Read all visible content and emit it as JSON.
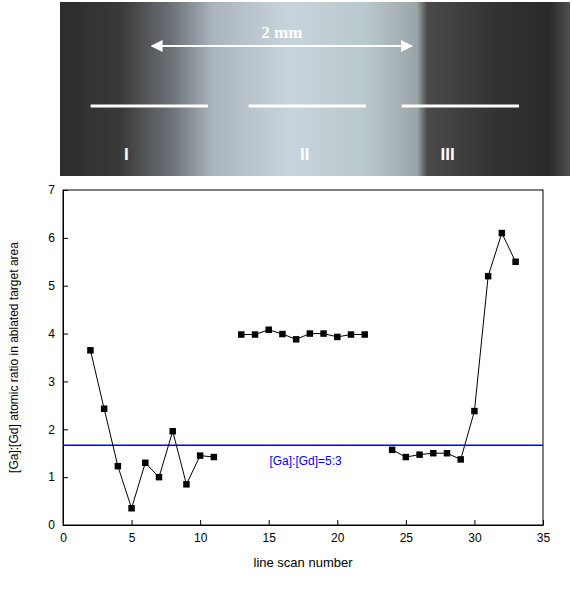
{
  "photo": {
    "scale_label": "2 mm",
    "regions": [
      "I",
      "II",
      "III"
    ]
  },
  "chart_data": {
    "type": "line",
    "x_label": "line scan number",
    "y_label": "[Ga]:[Gd] atomic ratio in ablated target area",
    "x": [
      2,
      3,
      4,
      5,
      6,
      7,
      8,
      9,
      10,
      11,
      12,
      13,
      14,
      15,
      16,
      17,
      18,
      19,
      20,
      21,
      22,
      23,
      24,
      25,
      26,
      27,
      28,
      29,
      30,
      31,
      32,
      33
    ],
    "values": [
      3.65,
      2.43,
      1.23,
      0.35,
      1.3,
      1.0,
      1.96,
      0.85,
      1.45,
      1.42,
      null,
      3.98,
      3.98,
      4.08,
      3.99,
      3.88,
      4.0,
      4.0,
      3.93,
      3.98,
      3.98,
      null,
      1.57,
      1.42,
      1.47,
      1.5,
      1.5,
      1.37,
      2.38,
      5.2,
      6.1,
      5.5
    ],
    "color": "#000000",
    "marker": "square",
    "line_style": "solid",
    "xlim": [
      0,
      35
    ],
    "xticks": [
      0,
      5,
      10,
      15,
      20,
      25,
      30,
      35
    ],
    "ylim": [
      0,
      7
    ],
    "yticks": [
      0,
      1,
      2,
      3,
      4,
      5,
      6,
      7
    ],
    "reference_line": {
      "y": 1.667,
      "label": "[Ga]:[Gd]=5:3",
      "color": "#0000ff"
    }
  }
}
